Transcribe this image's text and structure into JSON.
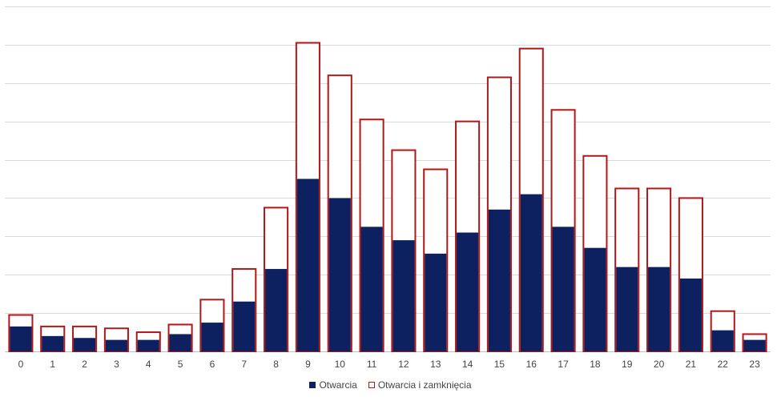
{
  "chart_data": {
    "type": "bar",
    "categories": [
      "0",
      "1",
      "2",
      "3",
      "4",
      "5",
      "6",
      "7",
      "8",
      "9",
      "10",
      "11",
      "12",
      "13",
      "14",
      "15",
      "16",
      "17",
      "18",
      "19",
      "20",
      "21",
      "22",
      "23"
    ],
    "series": [
      {
        "name": "Otwarcia",
        "style": "filled",
        "color": "#0d2060",
        "values": [
          13,
          8,
          7,
          6,
          6,
          9,
          15,
          26,
          43,
          90,
          80,
          65,
          58,
          51,
          62,
          74,
          82,
          65,
          54,
          44,
          44,
          38,
          11,
          6
        ]
      },
      {
        "name": "Otwarcia i zamknięcia",
        "style": "outline",
        "color": "#b01818",
        "values": [
          19,
          13,
          13,
          12,
          10,
          14,
          27,
          43,
          75,
          161,
          144,
          121,
          105,
          95,
          120,
          143,
          158,
          126,
          102,
          85,
          85,
          80,
          21,
          9
        ]
      }
    ],
    "ylim": [
      0,
      180
    ],
    "y_gridlines": [
      0,
      20,
      40,
      60,
      80,
      100,
      120,
      140,
      160,
      180
    ],
    "grid": true,
    "legend_position": "bottom",
    "xlabel": "",
    "ylabel": "",
    "title": ""
  }
}
